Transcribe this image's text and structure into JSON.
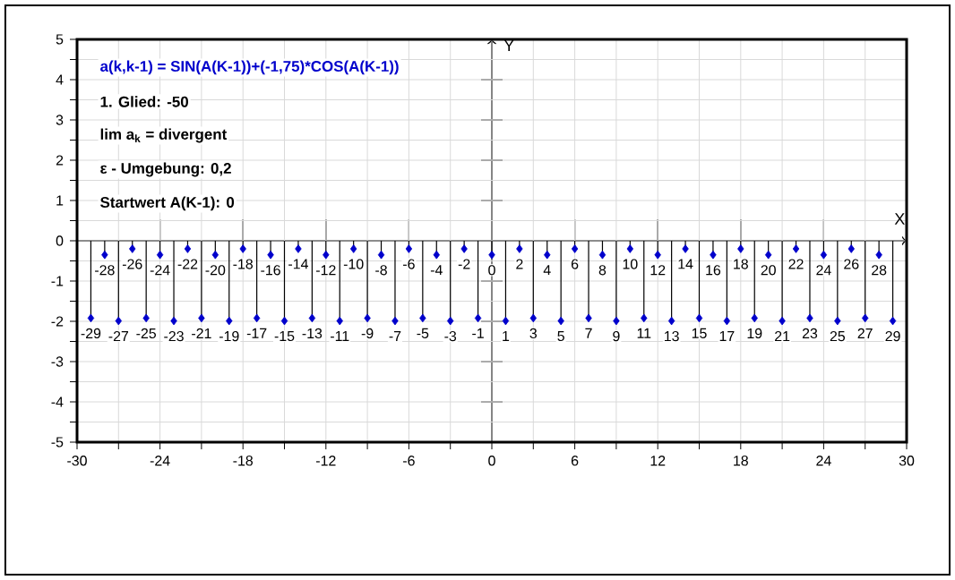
{
  "chart_data": {
    "type": "lollipop",
    "xlabel": "X",
    "ylabel": "Y",
    "x": [
      -29,
      -28,
      -27,
      -26,
      -25,
      -24,
      -23,
      -22,
      -21,
      -20,
      -19,
      -18,
      -17,
      -16,
      -15,
      -14,
      -13,
      -12,
      -11,
      -10,
      -9,
      -8,
      -7,
      -6,
      -5,
      -4,
      -3,
      -2,
      -1,
      0,
      1,
      2,
      3,
      4,
      5,
      6,
      7,
      8,
      9,
      10,
      11,
      12,
      13,
      14,
      15,
      16,
      17,
      18,
      19,
      20,
      21,
      22,
      23,
      24,
      25,
      26,
      27,
      28,
      29
    ],
    "values": [
      -1.92,
      -0.35,
      -1.99,
      -0.2,
      -1.92,
      -0.35,
      -1.99,
      -0.2,
      -1.92,
      -0.35,
      -1.99,
      -0.2,
      -1.92,
      -0.35,
      -1.99,
      -0.2,
      -1.92,
      -0.35,
      -1.99,
      -0.2,
      -1.92,
      -0.35,
      -1.99,
      -0.2,
      -1.92,
      -0.35,
      -1.99,
      -0.2,
      -1.92,
      -0.35,
      -1.99,
      -0.2,
      -1.92,
      -0.35,
      -1.99,
      -0.2,
      -1.92,
      -0.35,
      -1.99,
      -0.2,
      -1.92,
      -0.35,
      -1.99,
      -0.2,
      -1.92,
      -0.35,
      -1.99,
      -0.2,
      -1.92,
      -0.35,
      -1.99,
      -0.2,
      -1.92,
      -0.35,
      -1.99,
      -0.2,
      -1.92,
      -0.35,
      -1.99
    ],
    "color": "#0000cc",
    "marker": "diamond",
    "grid": true,
    "xlim": [
      -30,
      30
    ],
    "ylim": [
      -5,
      5
    ],
    "xticks": [
      -30,
      {
        "value": -27,
        "label": null
      },
      -24,
      {
        "value": -21,
        "label": null
      },
      -18,
      {
        "value": -15,
        "label": null
      },
      -12,
      {
        "value": -9,
        "label": null
      },
      -6,
      {
        "value": -3,
        "label": null
      },
      0,
      {
        "value": 3,
        "label": null
      },
      6,
      {
        "value": 9,
        "label": null
      },
      12,
      {
        "value": 15,
        "label": null
      },
      18,
      {
        "value": 21,
        "label": null
      },
      24,
      {
        "value": 27,
        "label": null
      },
      30
    ],
    "yticks": [
      -5,
      {
        "value": -4.5,
        "label": null
      },
      -4,
      {
        "value": -3.5,
        "label": null
      },
      -3,
      {
        "value": -2.5,
        "label": null
      },
      -2,
      {
        "value": -1.5,
        "label": null
      },
      -1,
      {
        "value": -0.5,
        "label": null
      },
      0,
      {
        "value": 0.5,
        "label": null
      },
      1,
      {
        "value": 1.5,
        "label": null
      },
      2,
      {
        "value": 2.5,
        "label": null
      },
      3,
      {
        "value": 3.5,
        "label": null
      },
      4,
      {
        "value": 4.5,
        "label": null
      },
      5
    ],
    "annotations": [
      "a(k,k-1) = SIN(A(K-1))+(-1,75)*COS(A(K-1))",
      "1. Glied: -50",
      "lim a$_{k}$ = divergent",
      "ε - Umgebung: 0,2",
      "Startwert A(K-1): 0",
      {
        "text": "-29",
        "x": -29,
        "y": -1.92
      },
      {
        "text": "-28",
        "x": -28,
        "y": -0.35
      },
      {
        "text": "-27",
        "x": -27,
        "y": -1.99
      },
      {
        "text": "-26",
        "x": -26,
        "y": -0.2
      },
      {
        "text": "-25",
        "x": -25,
        "y": -1.92
      },
      {
        "text": "-24",
        "x": -24,
        "y": -0.35
      },
      {
        "text": "-23",
        "x": -23,
        "y": -1.99
      },
      {
        "text": "-22",
        "x": -22,
        "y": -0.2
      },
      {
        "text": "-21",
        "x": -21,
        "y": -1.92
      },
      {
        "text": "-20",
        "x": -20,
        "y": -0.35
      },
      {
        "text": "-19",
        "x": -19,
        "y": -1.99
      },
      {
        "text": "-18",
        "x": -18,
        "y": -0.2
      },
      {
        "text": "-17",
        "x": -17,
        "y": -1.92
      },
      {
        "text": "-16",
        "x": -16,
        "y": -0.35
      },
      {
        "text": "-15",
        "x": -15,
        "y": -1.99
      },
      {
        "text": "-14",
        "x": -14,
        "y": -0.2
      },
      {
        "text": "-13",
        "x": -13,
        "y": -1.92
      },
      {
        "text": "-12",
        "x": -12,
        "y": -0.35
      },
      {
        "text": "-11",
        "x": -11,
        "y": -1.99
      },
      {
        "text": "-10",
        "x": -10,
        "y": -0.2
      },
      {
        "text": "-9",
        "x": -9,
        "y": -1.92
      },
      {
        "text": "-8",
        "x": -8,
        "y": -0.35
      },
      {
        "text": "-7",
        "x": -7,
        "y": -1.99
      },
      {
        "text": "-6",
        "x": -6,
        "y": -0.2
      },
      {
        "text": "-5",
        "x": -5,
        "y": -1.92
      },
      {
        "text": "-4",
        "x": -4,
        "y": -0.35
      },
      {
        "text": "-3",
        "x": -3,
        "y": -1.99
      },
      {
        "text": "-2",
        "x": -2,
        "y": -0.2
      },
      {
        "text": "-1",
        "x": -1,
        "y": -1.92
      },
      {
        "text": "0",
        "x": 0,
        "y": -0.35
      },
      {
        "text": "1",
        "x": 1,
        "y": -1.99
      },
      {
        "text": "2",
        "x": 2,
        "y": -0.2
      },
      {
        "text": "3",
        "x": 3,
        "y": -1.92
      },
      {
        "text": "4",
        "x": 4,
        "y": -0.35
      },
      {
        "text": "5",
        "x": 5,
        "y": -1.99
      },
      {
        "text": "6",
        "x": 6,
        "y": -0.2
      },
      {
        "text": "7",
        "x": 7,
        "y": -1.92
      },
      {
        "text": "8",
        "x": 8,
        "y": -0.35
      },
      {
        "text": "9",
        "x": 9,
        "y": -1.99
      },
      {
        "text": "10",
        "x": 10,
        "y": -0.2
      },
      {
        "text": "11",
        "x": 11,
        "y": -1.92
      },
      {
        "text": "12",
        "x": 12,
        "y": -0.35
      },
      {
        "text": "13",
        "x": 13,
        "y": -1.99
      },
      {
        "text": "14",
        "x": 14,
        "y": -0.2
      },
      {
        "text": "15",
        "x": 15,
        "y": -1.92
      },
      {
        "text": "16",
        "x": 16,
        "y": -0.35
      },
      {
        "text": "17",
        "x": 17,
        "y": -1.99
      },
      {
        "text": "18",
        "x": 18,
        "y": -0.2
      },
      {
        "text": "19",
        "x": 19,
        "y": -1.92
      },
      {
        "text": "20",
        "x": 20,
        "y": -0.35
      },
      {
        "text": "21",
        "x": 21,
        "y": -1.99
      },
      {
        "text": "22",
        "x": 22,
        "y": -0.2
      },
      {
        "text": "23",
        "x": 23,
        "y": -1.92
      },
      {
        "text": "24",
        "x": 24,
        "y": -0.35
      },
      {
        "text": "25",
        "x": 25,
        "y": -1.99
      },
      {
        "text": "26",
        "x": 26,
        "y": -0.2
      },
      {
        "text": "27",
        "x": 27,
        "y": -1.92
      },
      {
        "text": "28",
        "x": 28,
        "y": -0.35
      },
      {
        "text": "29",
        "x": 29,
        "y": -1.99
      }
    ]
  }
}
